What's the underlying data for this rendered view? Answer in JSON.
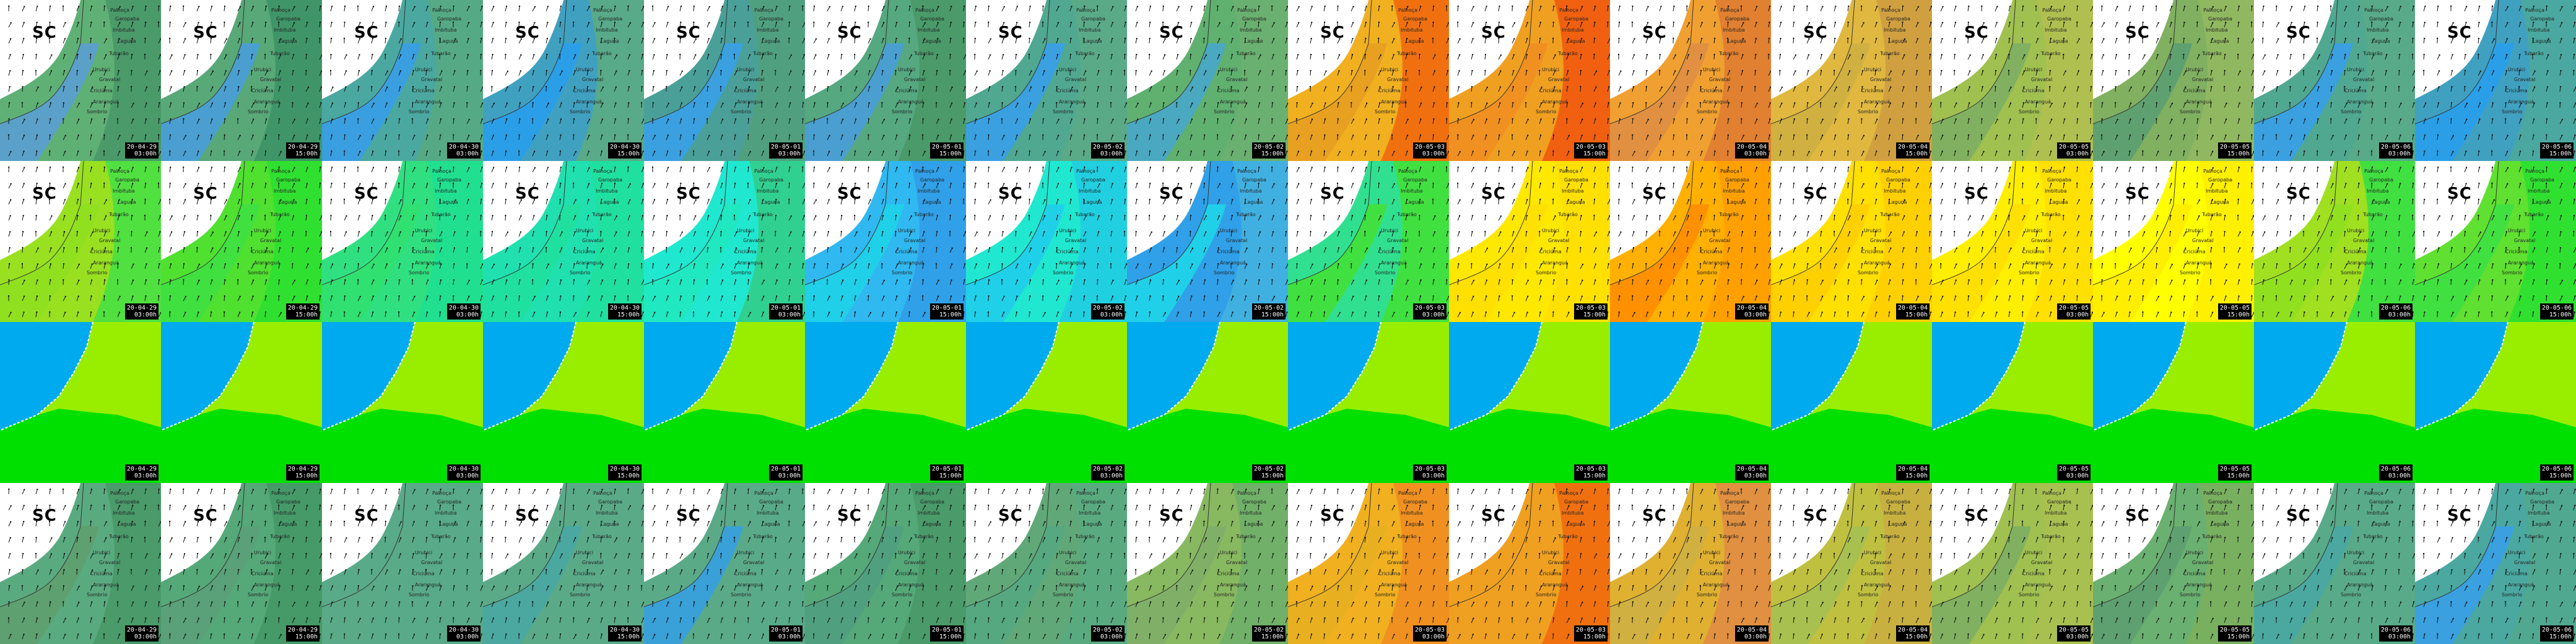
{
  "grid": {
    "columns": 16,
    "rows": 4
  },
  "region_label": "SC",
  "place_names": [
    "Palhoça",
    "Garopaba",
    "Imbituba",
    "Laguna",
    "Tubarão",
    "Urubici",
    "Gravatal",
    "Criciúma",
    "Araranguá",
    "Sombrio"
  ],
  "times": [
    {
      "date": "20-04-29",
      "hour": "03:00h"
    },
    {
      "date": "20-04-29",
      "hour": "15:00h"
    },
    {
      "date": "20-04-30",
      "hour": "03:00h"
    },
    {
      "date": "20-04-30",
      "hour": "15:00h"
    },
    {
      "date": "20-05-01",
      "hour": "03:00h"
    },
    {
      "date": "20-05-01",
      "hour": "15:00h"
    },
    {
      "date": "20-05-02",
      "hour": "03:00h"
    },
    {
      "date": "20-05-02",
      "hour": "15:00h"
    },
    {
      "date": "20-05-03",
      "hour": "03:00h"
    },
    {
      "date": "20-05-03",
      "hour": "15:00h"
    },
    {
      "date": "20-05-04",
      "hour": "03:00h"
    },
    {
      "date": "20-05-04",
      "hour": "15:00h"
    },
    {
      "date": "20-05-05",
      "hour": "03:00h"
    },
    {
      "date": "20-05-05",
      "hour": "15:00h"
    },
    {
      "date": "20-05-06",
      "hour": "03:00h"
    },
    {
      "date": "20-05-06",
      "hour": "15:00h"
    }
  ],
  "rows": [
    {
      "name": "wind-speed",
      "show_arrows": true,
      "show_labels": true,
      "left_colors": [
        "#5aa0c8",
        "#4a9fd0",
        "#3a9fe0",
        "#2a9fe8",
        "#3aa0e0",
        "#4a9fd0",
        "#3aa0e0",
        "#4aa8c0",
        "#e8a020",
        "#f09020",
        "#e09040",
        "#d0b040",
        "#80b060",
        "#5fa070",
        "#3aa0e0",
        "#2a9fe8"
      ],
      "mid_colors": [
        "#5fb075",
        "#58a878",
        "#4aa8a0",
        "#40a0c0",
        "#4aa098",
        "#55a880",
        "#50a890",
        "#60b070",
        "#f0b020",
        "#f0a020",
        "#f0a030",
        "#e0b840",
        "#a0c050",
        "#80b060",
        "#50a890",
        "#40a0c0"
      ],
      "right_colors": [
        "#4a9a6a",
        "#3f9568",
        "#55aa85",
        "#58aa88",
        "#50a080",
        "#4a9a6a",
        "#5aaa88",
        "#6ab070",
        "#f07010",
        "#f06010",
        "#e08030",
        "#d0a040",
        "#b0c050",
        "#90b860",
        "#58aa88",
        "#4aa8a0"
      ]
    },
    {
      "name": "temperature",
      "show_arrows": true,
      "show_labels": true,
      "left_colors": [
        "#90e020",
        "#40e040",
        "#30e070",
        "#20e0a0",
        "#20e8c0",
        "#20d0e8",
        "#20d0e8",
        "#20d0e8",
        "#40e040",
        "#ffe000",
        "#ff9000",
        "#ffd000",
        "#ffe000",
        "#ffee00",
        "#90e020",
        "#40e040"
      ],
      "mid_colors": [
        "#98e020",
        "#50e030",
        "#30e080",
        "#20e0b0",
        "#20e8d0",
        "#30b8f0",
        "#20e8d0",
        "#30a0e8",
        "#30e090",
        "#ffe800",
        "#ffb000",
        "#ffe000",
        "#ffee00",
        "#ffff00",
        "#a0e020",
        "#60e030"
      ],
      "right_colors": [
        "#50e040",
        "#30e030",
        "#20e090",
        "#20e0a0",
        "#30d090",
        "#30a0e8",
        "#20d0e0",
        "#40b0e0",
        "#40e040",
        "#ffe000",
        "#ffa000",
        "#ffd000",
        "#ffe000",
        "#fff000",
        "#40e040",
        "#30e030"
      ]
    },
    {
      "name": "landcover",
      "show_arrows": false,
      "show_labels": false,
      "left_colors": [
        "#00aaee",
        "#00aaee",
        "#00aaee",
        "#00aaee",
        "#00aaee",
        "#00aaee",
        "#00aaee",
        "#00aaee",
        "#00aaee",
        "#00aaee",
        "#00aaee",
        "#00aaee",
        "#00aaee",
        "#00aaee",
        "#00aaee",
        "#00aaee"
      ],
      "mid_colors": [
        "#99ee00",
        "#99ee00",
        "#99ee00",
        "#99ee00",
        "#99ee00",
        "#99ee00",
        "#99ee00",
        "#99ee00",
        "#99ee00",
        "#99ee00",
        "#99ee00",
        "#99ee00",
        "#99ee00",
        "#99ee00",
        "#99ee00",
        "#99ee00"
      ],
      "right_colors": [
        "#00e000",
        "#00e000",
        "#00e000",
        "#00e000",
        "#00e000",
        "#00e000",
        "#00e000",
        "#00e000",
        "#00e000",
        "#00e000",
        "#00e000",
        "#00e000",
        "#00e000",
        "#00e000",
        "#00e000",
        "#00e000"
      ]
    },
    {
      "name": "wind-gust",
      "show_arrows": true,
      "show_labels": true,
      "left_colors": [
        "#5fa070",
        "#5aa078",
        "#5aaa88",
        "#4aa8a0",
        "#3aa0d8",
        "#50a080",
        "#55a880",
        "#80b068",
        "#e8b020",
        "#f0a020",
        "#d0b040",
        "#a8c050",
        "#80b060",
        "#5fa070",
        "#4aa8a0",
        "#3aa0e0"
      ],
      "mid_colors": [
        "#5aaa80",
        "#55a878",
        "#58aa88",
        "#5aaa88",
        "#5aaa88",
        "#55a878",
        "#60a878",
        "#88b860",
        "#f0b020",
        "#f0a020",
        "#e0b030",
        "#c0c040",
        "#a0c050",
        "#6ab070",
        "#58aa88",
        "#4aa8a0"
      ],
      "right_colors": [
        "#4a9a6a",
        "#459a68",
        "#58aa88",
        "#5aaa88",
        "#58aa88",
        "#4a9a6a",
        "#5aaa80",
        "#70b068",
        "#f09020",
        "#f07010",
        "#e09040",
        "#c8b040",
        "#a8c050",
        "#78b060",
        "#58aa88",
        "#50a890"
      ]
    }
  ]
}
